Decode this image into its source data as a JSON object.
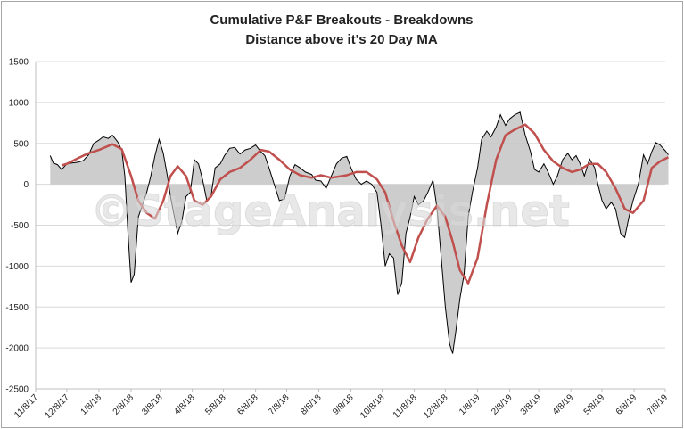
{
  "title_line1": "Cumulative P&F Breakouts - Breakdowns",
  "title_line2": "Distance above it's 20 Day MA",
  "watermark": "©StageAnalysis.net",
  "colors": {
    "area_fill": "#c8c8c8",
    "line": "#000000",
    "ma": "#c0504d",
    "grid": "#d9d9d9",
    "border": "#a6a6a6"
  },
  "chart_data": {
    "type": "area",
    "title": "Cumulative P&F Breakouts - Breakdowns",
    "subtitle": "Distance above it's 20 Day MA",
    "xlabel": "",
    "ylabel": "",
    "ylim": [
      -2500,
      1500
    ],
    "yticks": [
      1500,
      1000,
      500,
      0,
      -500,
      -1000,
      -1500,
      -2000,
      -2500
    ],
    "xlim": [
      "11/8/17",
      "7/8/19"
    ],
    "xticks": [
      "11/8/17",
      "12/8/17",
      "1/8/18",
      "2/8/18",
      "3/8/18",
      "4/8/18",
      "5/8/18",
      "6/8/18",
      "7/8/18",
      "8/8/18",
      "9/8/18",
      "10/8/18",
      "11/8/18",
      "12/8/18",
      "1/8/19",
      "2/8/19",
      "3/8/19",
      "4/8/19",
      "5/8/19",
      "6/8/19",
      "7/8/19"
    ],
    "grid": true,
    "legend": "none",
    "series": [
      {
        "points": [
          [
            "11/22/17",
            350
          ],
          [
            "11/25/17",
            260
          ],
          [
            "11/29/17",
            240
          ],
          [
            "12/3/17",
            180
          ],
          [
            "12/8/17",
            250
          ],
          [
            "12/13/17",
            260
          ],
          [
            "12/19/17",
            270
          ],
          [
            "12/24/17",
            290
          ],
          [
            "12/29/17",
            360
          ],
          [
            "1/3/18",
            500
          ],
          [
            "1/8/18",
            540
          ],
          [
            "1/12/18",
            580
          ],
          [
            "1/17/18",
            560
          ],
          [
            "1/21/18",
            600
          ],
          [
            "1/26/18",
            520
          ],
          [
            "1/30/18",
            420
          ],
          [
            "2/2/18",
            100
          ],
          [
            "2/5/18",
            -600
          ],
          [
            "2/8/18",
            -1200
          ],
          [
            "2/11/18",
            -1100
          ],
          [
            "2/15/18",
            -400
          ],
          [
            "2/19/18",
            -250
          ],
          [
            "2/23/18",
            -100
          ],
          [
            "2/27/18",
            100
          ],
          [
            "3/3/18",
            350
          ],
          [
            "3/7/18",
            550
          ],
          [
            "3/11/18",
            380
          ],
          [
            "3/15/18",
            100
          ],
          [
            "3/18/18",
            -150
          ],
          [
            "3/21/18",
            -350
          ],
          [
            "3/25/18",
            -600
          ],
          [
            "3/29/18",
            -450
          ],
          [
            "4/2/18",
            -150
          ],
          [
            "4/6/18",
            -100
          ],
          [
            "4/10/18",
            300
          ],
          [
            "4/14/18",
            250
          ],
          [
            "4/18/18",
            50
          ],
          [
            "4/22/18",
            -200
          ],
          [
            "4/26/18",
            -150
          ],
          [
            "4/30/18",
            200
          ],
          [
            "5/5/18",
            250
          ],
          [
            "5/9/18",
            350
          ],
          [
            "5/14/18",
            440
          ],
          [
            "5/19/18",
            450
          ],
          [
            "5/24/18",
            370
          ],
          [
            "5/29/18",
            420
          ],
          [
            "6/3/18",
            440
          ],
          [
            "6/8/18",
            480
          ],
          [
            "6/13/18",
            400
          ],
          [
            "6/17/18",
            350
          ],
          [
            "6/21/18",
            200
          ],
          [
            "6/26/18",
            0
          ],
          [
            "7/1/18",
            -200
          ],
          [
            "7/6/18",
            -180
          ],
          [
            "7/11/18",
            100
          ],
          [
            "7/16/18",
            240
          ],
          [
            "7/21/18",
            200
          ],
          [
            "7/26/18",
            150
          ],
          [
            "8/1/18",
            120
          ],
          [
            "8/5/18",
            50
          ],
          [
            "8/10/18",
            40
          ],
          [
            "8/15/18",
            -50
          ],
          [
            "8/20/18",
            100
          ],
          [
            "8/25/18",
            250
          ],
          [
            "8/30/18",
            320
          ],
          [
            "9/4/18",
            340
          ],
          [
            "9/8/18",
            200
          ],
          [
            "9/13/18",
            60
          ],
          [
            "9/18/18",
            0
          ],
          [
            "9/23/18",
            40
          ],
          [
            "9/28/18",
            0
          ],
          [
            "10/3/18",
            -100
          ],
          [
            "10/7/18",
            -500
          ],
          [
            "10/11/18",
            -1000
          ],
          [
            "10/15/18",
            -850
          ],
          [
            "10/19/18",
            -900
          ],
          [
            "10/23/18",
            -1350
          ],
          [
            "10/27/18",
            -1200
          ],
          [
            "10/31/18",
            -600
          ],
          [
            "11/4/18",
            -400
          ],
          [
            "11/8/18",
            -150
          ],
          [
            "11/12/18",
            -250
          ],
          [
            "11/17/18",
            -200
          ],
          [
            "11/21/18",
            -100
          ],
          [
            "11/26/18",
            50
          ],
          [
            "11/30/18",
            -300
          ],
          [
            "12/4/18",
            -900
          ],
          [
            "12/8/18",
            -1500
          ],
          [
            "12/12/18",
            -1950
          ],
          [
            "12/15/18",
            -2070
          ],
          [
            "12/18/18",
            -1800
          ],
          [
            "12/22/18",
            -1400
          ],
          [
            "12/26/18",
            -1100
          ],
          [
            "12/30/18",
            -400
          ],
          [
            "1/3/19",
            -100
          ],
          [
            "1/8/19",
            200
          ],
          [
            "1/12/19",
            550
          ],
          [
            "1/17/19",
            650
          ],
          [
            "1/21/19",
            580
          ],
          [
            "1/26/19",
            700
          ],
          [
            "1/30/19",
            850
          ],
          [
            "2/4/19",
            720
          ],
          [
            "2/8/19",
            800
          ],
          [
            "2/13/19",
            850
          ],
          [
            "2/18/19",
            880
          ],
          [
            "2/23/19",
            600
          ],
          [
            "2/28/19",
            400
          ],
          [
            "3/4/19",
            180
          ],
          [
            "3/8/19",
            150
          ],
          [
            "3/13/19",
            250
          ],
          [
            "3/17/19",
            150
          ],
          [
            "3/22/19",
            0
          ],
          [
            "3/26/19",
            100
          ],
          [
            "3/31/19",
            300
          ],
          [
            "4/5/19",
            380
          ],
          [
            "4/9/19",
            300
          ],
          [
            "4/13/19",
            350
          ],
          [
            "4/17/19",
            250
          ],
          [
            "4/21/19",
            100
          ],
          [
            "4/26/19",
            310
          ],
          [
            "5/1/19",
            200
          ],
          [
            "5/4/19",
            0
          ],
          [
            "5/8/19",
            -200
          ],
          [
            "5/12/19",
            -300
          ],
          [
            "5/17/19",
            -220
          ],
          [
            "5/21/19",
            -300
          ],
          [
            "5/26/19",
            -600
          ],
          [
            "5/30/19",
            -650
          ],
          [
            "6/3/19",
            -400
          ],
          [
            "6/7/19",
            -200
          ],
          [
            "6/12/19",
            0
          ],
          [
            "6/17/19",
            360
          ],
          [
            "6/21/19",
            250
          ],
          [
            "6/25/19",
            400
          ],
          [
            "6/29/19",
            510
          ],
          [
            "7/3/19",
            480
          ],
          [
            "7/8/19",
            410
          ],
          [
            "7/11/19",
            360
          ]
        ]
      },
      {
        "points": [
          [
            "12/3/17",
            230
          ],
          [
            "12/8/17",
            250
          ],
          [
            "12/19/17",
            320
          ],
          [
            "12/29/17",
            380
          ],
          [
            "1/8/18",
            420
          ],
          [
            "1/21/18",
            490
          ],
          [
            "1/30/18",
            430
          ],
          [
            "2/8/18",
            100
          ],
          [
            "2/15/18",
            -200
          ],
          [
            "2/23/18",
            -350
          ],
          [
            "3/3/18",
            -420
          ],
          [
            "3/11/18",
            -200
          ],
          [
            "3/18/18",
            100
          ],
          [
            "3/25/18",
            220
          ],
          [
            "4/2/18",
            100
          ],
          [
            "4/10/18",
            -200
          ],
          [
            "4/18/18",
            -250
          ],
          [
            "4/26/18",
            -150
          ],
          [
            "5/5/18",
            60
          ],
          [
            "5/14/18",
            150
          ],
          [
            "5/24/18",
            200
          ],
          [
            "6/3/18",
            300
          ],
          [
            "6/13/18",
            420
          ],
          [
            "6/21/18",
            400
          ],
          [
            "7/1/18",
            300
          ],
          [
            "7/11/18",
            180
          ],
          [
            "7/21/18",
            110
          ],
          [
            "8/1/18",
            80
          ],
          [
            "8/10/18",
            110
          ],
          [
            "8/20/18",
            80
          ],
          [
            "9/4/18",
            110
          ],
          [
            "9/13/18",
            150
          ],
          [
            "9/23/18",
            150
          ],
          [
            "10/3/18",
            60
          ],
          [
            "10/11/18",
            -100
          ],
          [
            "10/19/18",
            -450
          ],
          [
            "10/27/18",
            -750
          ],
          [
            "11/4/18",
            -950
          ],
          [
            "11/12/18",
            -650
          ],
          [
            "11/21/18",
            -420
          ],
          [
            "11/30/18",
            -260
          ],
          [
            "12/8/18",
            -400
          ],
          [
            "12/15/18",
            -700
          ],
          [
            "12/22/18",
            -1050
          ],
          [
            "12/30/18",
            -1210
          ],
          [
            "1/8/19",
            -900
          ],
          [
            "1/17/19",
            -250
          ],
          [
            "1/26/19",
            300
          ],
          [
            "2/4/19",
            600
          ],
          [
            "2/13/19",
            670
          ],
          [
            "2/23/19",
            730
          ],
          [
            "3/4/19",
            620
          ],
          [
            "3/13/19",
            420
          ],
          [
            "3/22/19",
            280
          ],
          [
            "3/31/19",
            200
          ],
          [
            "4/9/19",
            150
          ],
          [
            "4/17/19",
            180
          ],
          [
            "4/26/19",
            250
          ],
          [
            "5/4/19",
            250
          ],
          [
            "5/12/19",
            150
          ],
          [
            "5/21/19",
            -50
          ],
          [
            "5/30/19",
            -300
          ],
          [
            "6/7/19",
            -350
          ],
          [
            "6/17/19",
            -200
          ],
          [
            "6/25/19",
            200
          ],
          [
            "7/3/19",
            280
          ],
          [
            "7/11/19",
            330
          ]
        ]
      }
    ]
  }
}
